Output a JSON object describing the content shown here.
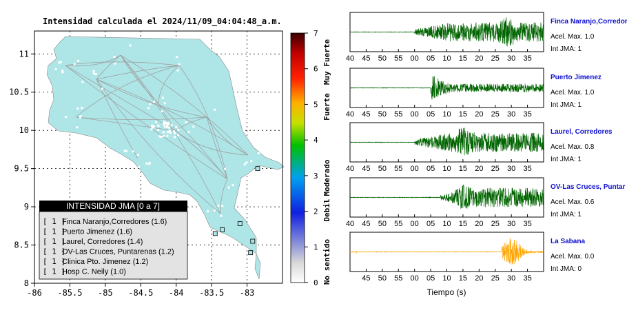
{
  "map": {
    "title": "Intensidad calculada el 2024/11/09_04:04:48_a.m.",
    "lon_ticks": [
      "-86",
      "-85.5",
      "-85",
      "-84.5",
      "-84",
      "-83.5",
      "-83"
    ],
    "lat_ticks": [
      "11",
      "10.5",
      "10",
      "9.5",
      "9",
      "8.5",
      "8"
    ],
    "lon_range": [
      -86,
      -82.5
    ],
    "lat_range": [
      8,
      11.3
    ],
    "land_color": "#aee6e8",
    "legend": {
      "title": "INTENSIDAD JMA [0 a 7]",
      "entries": [
        {
          "badge": "[ 1 ]",
          "label": "Finca Naranjo,Corredores (1.6)"
        },
        {
          "badge": "[ 1 ]",
          "label": "Puerto Jimenez (1.6)"
        },
        {
          "badge": "[ 1 ]",
          "label": "Laurel, Corredores (1.4)"
        },
        {
          "badge": "[ 1 ]",
          "label": "OV-Las Cruces, Puntarenas (1.2)"
        },
        {
          "badge": "[ 1 ]",
          "label": "Clinica Pto. Jimenez (1.2)"
        },
        {
          "badge": "[ 1 ]",
          "label": "Hosp C. Neily (1.0)"
        }
      ]
    },
    "stations": [
      {
        "lon": -82.85,
        "lat": 9.5
      },
      {
        "lon": -82.92,
        "lat": 8.55
      },
      {
        "lon": -82.95,
        "lat": 8.4
      },
      {
        "lon": -83.45,
        "lat": 8.65
      },
      {
        "lon": -83.35,
        "lat": 8.7
      },
      {
        "lon": -83.1,
        "lat": 8.78
      }
    ]
  },
  "colorbar": {
    "ticks": [
      "7",
      "6",
      "5",
      "4",
      "3",
      "2",
      "1",
      "0"
    ],
    "labels": [
      "Muy Fuerte",
      "Fuerte",
      "Moderado",
      "Debil",
      "No sentido"
    ]
  },
  "chart_data": {
    "type": "line",
    "xlabel": "Tiempo (s)",
    "x_ticks": [
      "40",
      "45",
      "50",
      "55",
      "00",
      "05",
      "10",
      "15",
      "20",
      "25",
      "30",
      "35"
    ],
    "x_range_s": [
      40,
      100
    ],
    "series": [
      {
        "name": "Finca Naranjo,Corredor",
        "accel_max_label": "Acel. Max. 1.0",
        "jma_label": "Int JMA: 1",
        "color": "#006400",
        "onset_s": 60,
        "peak_s": 89,
        "amplitude": 1.0
      },
      {
        "name": "Puerto Jimenez",
        "accel_max_label": "Acel. Max. 1.0",
        "jma_label": "Int JMA: 1",
        "color": "#006400",
        "onset_s": 65,
        "peak_s": 66,
        "amplitude": 1.0
      },
      {
        "name": "Laurel, Corredores",
        "accel_max_label": "Acel. Max. 0.8",
        "jma_label": "Int JMA: 1",
        "color": "#006400",
        "onset_s": 60,
        "peak_s": 75,
        "amplitude": 0.8
      },
      {
        "name": "OV-Las Cruces, Puntar",
        "accel_max_label": "Acel. Max. 0.6",
        "jma_label": "Int JMA: 1",
        "color": "#006400",
        "onset_s": 68,
        "peak_s": 75,
        "amplitude": 0.6
      },
      {
        "name": "La Sabana",
        "accel_max_label": "Acel. Max. 0.0",
        "jma_label": "Int JMA: 0",
        "color": "#ffa500",
        "onset_s": 87,
        "peak_s": 90,
        "amplitude": 0.0
      }
    ]
  }
}
